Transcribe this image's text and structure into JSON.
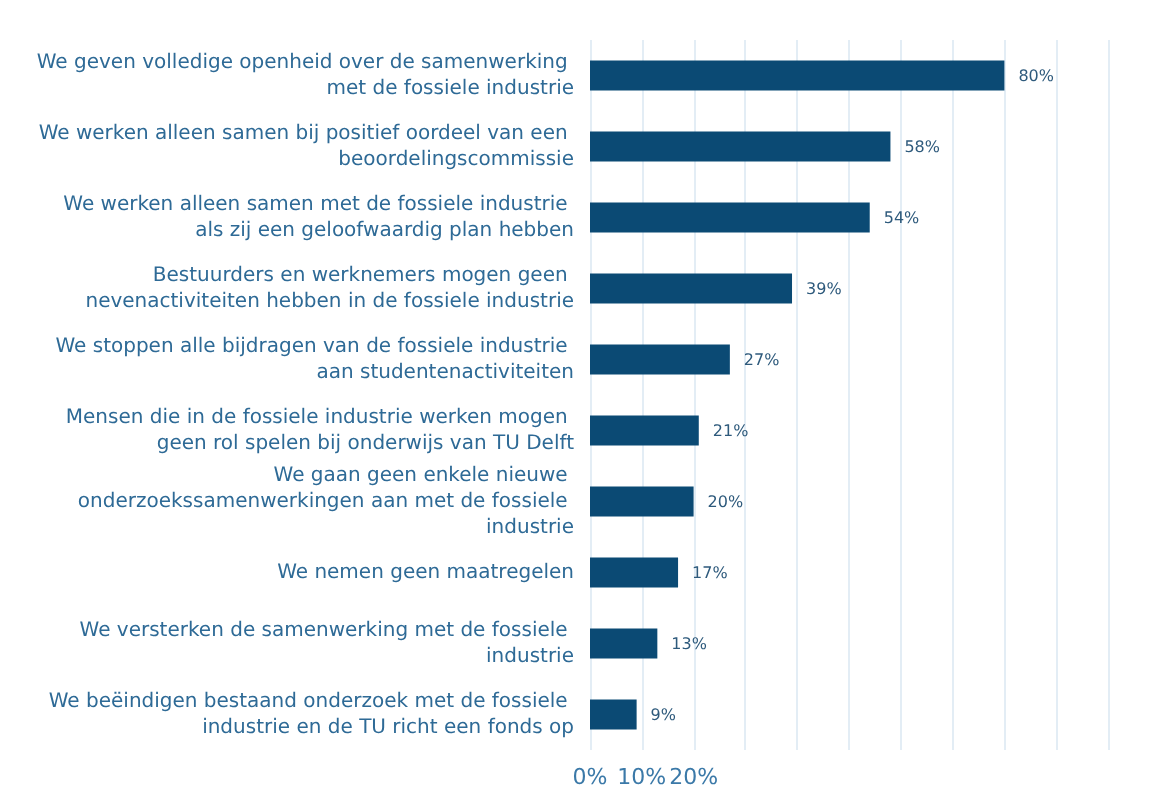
{
  "chart_data": {
    "type": "bar",
    "orientation": "horizontal",
    "categories": [
      "We geven volledige openheid over de samenwerking met de fossiele industrie",
      "We werken alleen samen bij positief oordeel van een beoordelingscommissie",
      "We werken alleen samen met de fossiele industrie als zij een geloofwaardig plan hebben",
      "Bestuurders en werknemers mogen geen nevenactiviteiten hebben in de fossiele industrie",
      "We stoppen alle bijdragen van de fossiele industrie aan studentenactiviteiten",
      "Mensen die in de fossiele industrie werken mogen geen rol spelen bij onderwijs van TU Delft",
      "We gaan geen enkele nieuwe onderzoekssamenwerkingen aan met de fossiele industrie",
      "We nemen geen maatregelen",
      "We versterken de samenwerking met de fossiele industrie",
      "We beëindigen bestaand onderzoek met de fossiele industrie en de TU richt een fonds op"
    ],
    "values": [
      80,
      58,
      54,
      39,
      27,
      21,
      20,
      17,
      13,
      9
    ],
    "value_labels": [
      "80%",
      "58%",
      "54%",
      "39%",
      "27%",
      "21%",
      "20%",
      "17%",
      "13%",
      "9%"
    ],
    "color": "#0b4a74",
    "xlim": [
      0,
      100
    ],
    "xticks": [
      {
        "value": 0,
        "label": "0%"
      },
      {
        "value": 10,
        "label": "10%"
      },
      {
        "value": 20,
        "label": "20%"
      },
      {
        "value": 30,
        "label": null
      },
      {
        "value": 40,
        "label": null
      },
      {
        "value": 50,
        "label": null
      },
      {
        "value": 60,
        "label": null
      },
      {
        "value": 70,
        "label": null
      },
      {
        "value": 80,
        "label": null
      },
      {
        "value": 90,
        "label": null
      },
      {
        "value": 100,
        "label": null
      }
    ],
    "grid": "x"
  }
}
